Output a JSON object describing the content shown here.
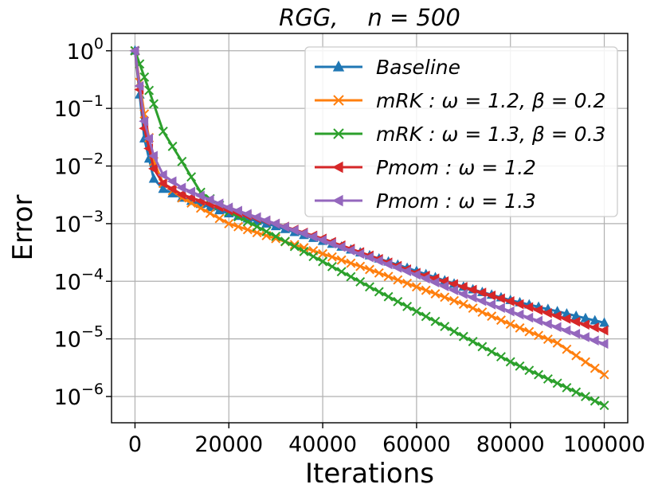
{
  "chart_data": {
    "type": "line",
    "title": "RGG,    n = 500",
    "xlabel": "Iterations",
    "ylabel": "Error",
    "yscale": "log",
    "xlim": [
      -5000,
      105000
    ],
    "ylim": [
      3.5e-07,
      2.0
    ],
    "grid": true,
    "legend_position": "top-right",
    "x_ticks": [
      {
        "value": 0,
        "label": "0"
      },
      {
        "value": 20000,
        "label": "20000"
      },
      {
        "value": 40000,
        "label": "40000"
      },
      {
        "value": 60000,
        "label": "60000"
      },
      {
        "value": 80000,
        "label": "80000"
      },
      {
        "value": 100000,
        "label": "100000"
      }
    ],
    "y_ticks": [
      {
        "value": 1,
        "base": "10",
        "exp": "0"
      },
      {
        "value": 0.1,
        "base": "10",
        "exp": "−1"
      },
      {
        "value": 0.01,
        "base": "10",
        "exp": "−2"
      },
      {
        "value": 0.001,
        "base": "10",
        "exp": "−3"
      },
      {
        "value": 0.0001,
        "base": "10",
        "exp": "−4"
      },
      {
        "value": 1e-05,
        "base": "10",
        "exp": "−5"
      },
      {
        "value": 1e-06,
        "base": "10",
        "exp": "−6"
      }
    ],
    "series": [
      {
        "name": "Baseline",
        "color": "#1f77b4",
        "marker": "triangle-up",
        "x": [
          0,
          2000,
          4000,
          6000,
          10000,
          20000,
          30000,
          40000,
          50000,
          60000,
          70000,
          80000,
          90000,
          100000
        ],
        "y": [
          1,
          0.03,
          0.006,
          0.004,
          0.0028,
          0.0015,
          0.0009,
          0.0005,
          0.00028,
          0.00015,
          8e-05,
          4.7e-05,
          3e-05,
          1.9e-05
        ]
      },
      {
        "name": "mRK : ω = 1.2, β = 0.2",
        "color": "#ff7f0e",
        "marker": "x",
        "x": [
          0,
          2000,
          4000,
          6000,
          10000,
          20000,
          30000,
          40000,
          50000,
          60000,
          70000,
          80000,
          90000,
          100000
        ],
        "y": [
          1,
          0.08,
          0.012,
          0.005,
          0.0028,
          0.001,
          0.00055,
          0.0003,
          0.00016,
          8e-05,
          4e-05,
          1.8e-05,
          8.5e-06,
          2.4e-06
        ]
      },
      {
        "name": "mRK : ω = 1.3, β = 0.3",
        "color": "#2ca02c",
        "marker": "x",
        "x": [
          0,
          2000,
          4000,
          6000,
          10000,
          14000,
          20000,
          30000,
          40000,
          50000,
          60000,
          70000,
          80000,
          90000,
          100000
        ],
        "y": [
          1,
          0.35,
          0.12,
          0.04,
          0.012,
          0.0035,
          0.0016,
          0.0006,
          0.00022,
          8e-05,
          3e-05,
          1.1e-05,
          4e-06,
          1.7e-06,
          7e-07
        ]
      },
      {
        "name": "Pmom : ω = 1.2",
        "color": "#d62728",
        "marker": "triangle-left",
        "x": [
          0,
          2000,
          4000,
          6000,
          10000,
          20000,
          30000,
          40000,
          50000,
          60000,
          70000,
          80000,
          90000,
          100000
        ],
        "y": [
          1,
          0.045,
          0.009,
          0.005,
          0.0032,
          0.0017,
          0.001,
          0.00055,
          0.00028,
          0.00014,
          8e-05,
          4.5e-05,
          2.5e-05,
          1.4e-05
        ]
      },
      {
        "name": "Pmom : ω = 1.3",
        "color": "#9467bd",
        "marker": "triangle-left",
        "x": [
          0,
          2000,
          4000,
          6000,
          10000,
          20000,
          30000,
          40000,
          50000,
          60000,
          70000,
          80000,
          90000,
          100000
        ],
        "y": [
          1,
          0.06,
          0.015,
          0.007,
          0.0042,
          0.0019,
          0.001,
          0.00052,
          0.00026,
          0.00013,
          6e-05,
          3e-05,
          1.6e-05,
          8.2e-06
        ]
      }
    ]
  }
}
